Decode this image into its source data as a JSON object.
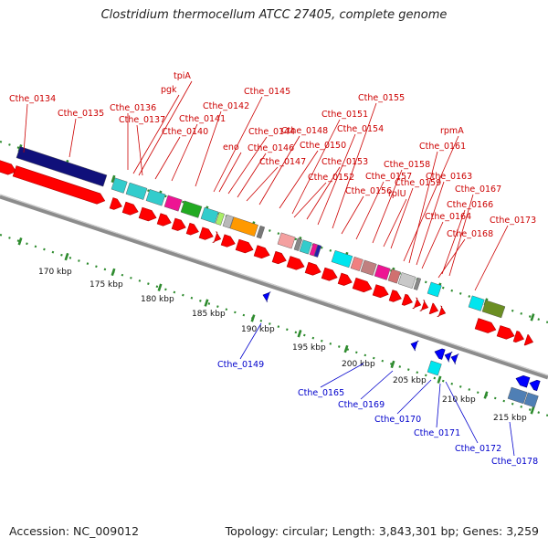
{
  "title": "Clostridium thermocellum ATCC 27405, complete genome",
  "footer": {
    "accession": "Accession: NC_009012",
    "summary": "Topology: circular; Length: 3,843,301 bp; Genes: 3,259"
  },
  "colors": {
    "forward_gene": "#ff0000",
    "reverse_gene": "#0000ff",
    "top_label": "#cc0000",
    "bottom_label": "#0000cc",
    "backbone": "#8c8c8c",
    "tick": "#2e8b2e"
  },
  "scale_labels": [
    "170 kbp",
    "175 kbp",
    "180 kbp",
    "185 kbp",
    "190 kbp",
    "195 kbp",
    "200 kbp",
    "205 kbp",
    "210 kbp",
    "215 kbp"
  ],
  "top_labels": [
    "Cthe_0134",
    "Cthe_0135",
    "tpiA",
    "pgk",
    "Cthe_0136",
    "Cthe_0137",
    "Cthe_0140",
    "Cthe_0141",
    "Cthe_0142",
    "Cthe_0145",
    "eno",
    "Cthe_0144",
    "Cthe_0146",
    "Cthe_0147",
    "Cthe_0148",
    "Cthe_0150",
    "Cthe_0151",
    "Cthe_0152",
    "Cthe_0153",
    "Cthe_0154",
    "Cthe_0155",
    "Cthe_0156",
    "Cthe_0157",
    "Cthe_0158",
    "rplU",
    "Cthe_0159",
    "rpmA",
    "Cthe_0161",
    "Cthe_0163",
    "Cthe_0164",
    "Cthe_0166",
    "Cthe_0167",
    "Cthe_0168",
    "Cthe_0173"
  ],
  "bottom_labels": [
    "Cthe_0149",
    "Cthe_0165",
    "Cthe_0169",
    "Cthe_0170",
    "Cthe_0171",
    "Cthe_0172",
    "Cthe_0178"
  ]
}
